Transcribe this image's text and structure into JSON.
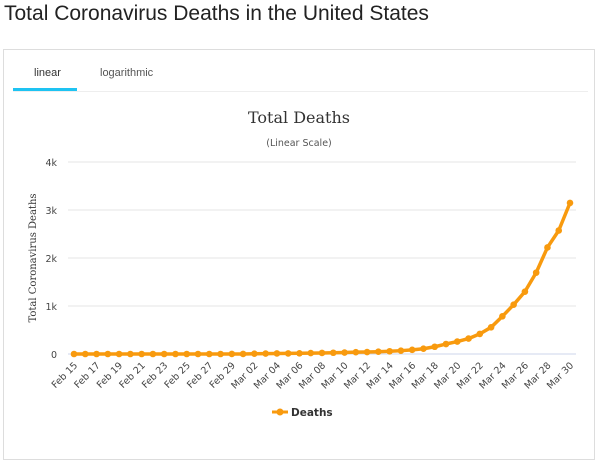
{
  "page": {
    "title": "Total Coronavirus Deaths in the United States"
  },
  "tabs": [
    {
      "label": "linear",
      "active": true
    },
    {
      "label": "logarithmic",
      "active": false
    }
  ],
  "colors": {
    "series": "#f89a0e",
    "tab_accent": "#1ec3f2"
  },
  "chart_data": {
    "type": "line",
    "title": "Total Deaths",
    "subtitle": "(Linear Scale)",
    "ylabel": "Total Coronavirus Deaths",
    "xlabel": "",
    "ylim": [
      0,
      4000
    ],
    "yticks": [
      "0",
      "1k",
      "2k",
      "3k",
      "4k"
    ],
    "grid": true,
    "legend": "bottom-center",
    "x": [
      "Feb 15",
      "Feb 16",
      "Feb 17",
      "Feb 18",
      "Feb 19",
      "Feb 20",
      "Feb 21",
      "Feb 22",
      "Feb 23",
      "Feb 24",
      "Feb 25",
      "Feb 26",
      "Feb 27",
      "Feb 28",
      "Feb 29",
      "Mar 01",
      "Mar 02",
      "Mar 03",
      "Mar 04",
      "Mar 05",
      "Mar 06",
      "Mar 07",
      "Mar 08",
      "Mar 09",
      "Mar 10",
      "Mar 11",
      "Mar 12",
      "Mar 13",
      "Mar 14",
      "Mar 15",
      "Mar 16",
      "Mar 17",
      "Mar 18",
      "Mar 19",
      "Mar 20",
      "Mar 21",
      "Mar 22",
      "Mar 23",
      "Mar 24",
      "Mar 25",
      "Mar 26",
      "Mar 27",
      "Mar 28",
      "Mar 29",
      "Mar 30"
    ],
    "series": [
      {
        "name": "Deaths",
        "values": [
          0,
          0,
          0,
          0,
          0,
          0,
          0,
          0,
          0,
          0,
          0,
          0,
          0,
          0,
          1,
          1,
          6,
          9,
          11,
          12,
          15,
          19,
          22,
          26,
          30,
          38,
          41,
          48,
          57,
          69,
          87,
          110,
          151,
          208,
          259,
          321,
          419,
          556,
          785,
          1027,
          1299,
          1695,
          2220,
          2573,
          3148
        ]
      }
    ]
  }
}
